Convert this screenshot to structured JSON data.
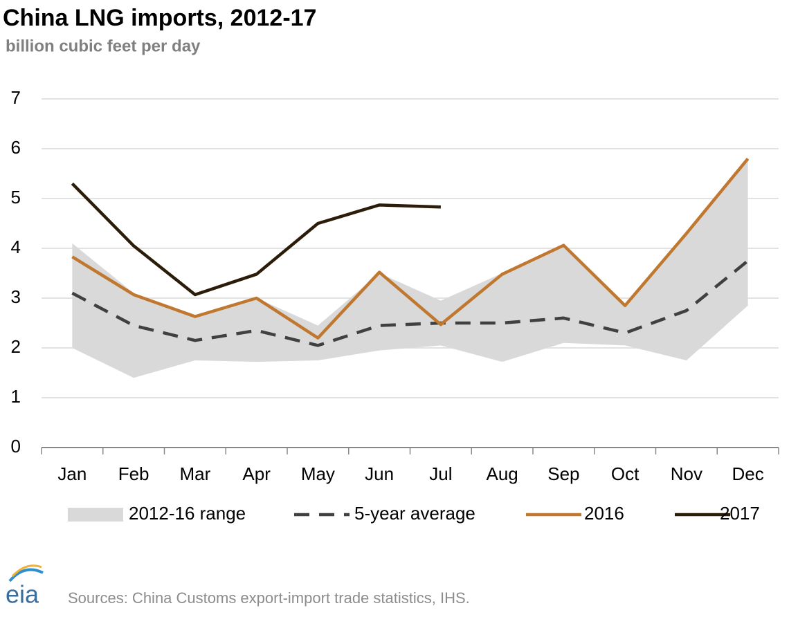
{
  "chart_data": {
    "type": "line",
    "title": "China LNG imports, 2012-17",
    "subtitle": "billion cubic feet per day",
    "source": "Sources: China Customs export-import trade statistics, IHS.",
    "logo": "eia",
    "categories": [
      "Jan",
      "Feb",
      "Mar",
      "Apr",
      "May",
      "Jun",
      "Jul",
      "Aug",
      "Sep",
      "Oct",
      "Nov",
      "Dec"
    ],
    "range": {
      "name": "2012-16 range",
      "color": "#d9d9d9",
      "high": [
        4.1,
        3.1,
        2.65,
        3.0,
        2.45,
        3.5,
        2.95,
        3.5,
        4.05,
        2.85,
        4.3,
        5.75
      ],
      "low": [
        2.0,
        1.4,
        1.75,
        1.72,
        1.75,
        1.95,
        2.05,
        1.72,
        2.1,
        2.05,
        1.75,
        2.85
      ]
    },
    "series": [
      {
        "name": "5-year average",
        "color": "#404040",
        "dashed": true,
        "values": [
          3.1,
          2.45,
          2.15,
          2.35,
          2.05,
          2.45,
          2.5,
          2.5,
          2.6,
          2.3,
          2.75,
          3.75
        ]
      },
      {
        "name": "2016",
        "color": "#c07830",
        "values": [
          3.83,
          3.07,
          2.63,
          3.0,
          2.2,
          3.52,
          2.47,
          3.48,
          4.06,
          2.85,
          4.3,
          5.8
        ]
      },
      {
        "name": "2017",
        "color": "#2b1d0a",
        "values": [
          5.3,
          4.05,
          3.07,
          3.48,
          4.5,
          4.87,
          4.83,
          null,
          null,
          null,
          null,
          null
        ]
      }
    ],
    "ylim": [
      0,
      7
    ],
    "yticks": [
      0,
      1,
      2,
      3,
      4,
      5,
      6,
      7
    ],
    "grid": true
  }
}
